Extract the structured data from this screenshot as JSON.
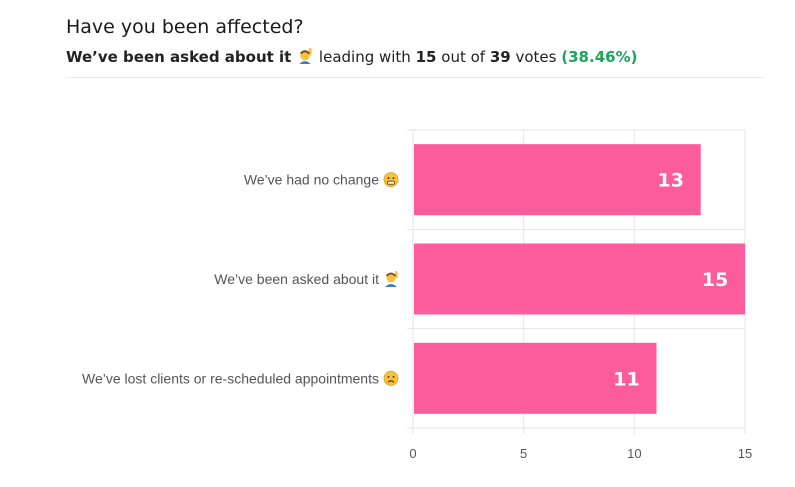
{
  "header": {
    "title": "Have you been affected?",
    "leader": "We’ve been asked about it",
    "leader_icon": "raising-hand-icon",
    "leading_with_text": "leading with",
    "leading_count": "15",
    "out_of_text": "out of",
    "total_votes": "39",
    "votes_text": "votes",
    "percent": "(38.46%)"
  },
  "colors": {
    "bar": "#fd5c9c",
    "percent": "#1fa35c",
    "grid": "#e6e6e6"
  },
  "chart_data": {
    "type": "bar",
    "orientation": "horizontal",
    "categories": [
      "We’ve had no change",
      "We’ve been asked about it",
      "We’ve lost clients or re-scheduled appointments"
    ],
    "category_icons": [
      "grimacing-face-icon",
      "raising-hand-icon",
      "frowning-face-icon"
    ],
    "values": [
      13,
      15,
      11
    ],
    "data_labels": [
      "13",
      "15",
      "11"
    ],
    "xticks": [
      "0",
      "5",
      "10",
      "15"
    ],
    "xlim": [
      0,
      15
    ],
    "grid": true
  }
}
